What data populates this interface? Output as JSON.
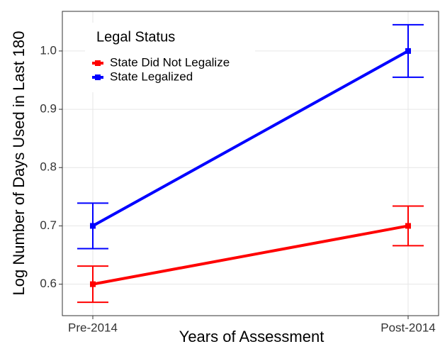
{
  "chart_data": {
    "type": "line",
    "x_label": "Years of Assessment",
    "y_label": "Log Number of Days Used in Last 180",
    "categories": [
      "Pre-2014",
      "Post-2014"
    ],
    "series": [
      {
        "name": "State Did Not Legalize",
        "color": "#ff0000",
        "values": [
          0.6,
          0.7
        ],
        "errors": [
          0.031,
          0.034
        ]
      },
      {
        "name": "State Legalized",
        "color": "#0000ff",
        "values": [
          0.7,
          1.0
        ],
        "errors": [
          0.039,
          0.045
        ]
      }
    ],
    "legend_title": "Legal Status",
    "legend": "top-left",
    "ylim": [
      0.546,
      1.068
    ],
    "yticks": [
      0.6,
      0.7,
      0.8,
      0.9,
      {
        "value": 1,
        "label": "1.0"
      }
    ],
    "grid": true
  }
}
